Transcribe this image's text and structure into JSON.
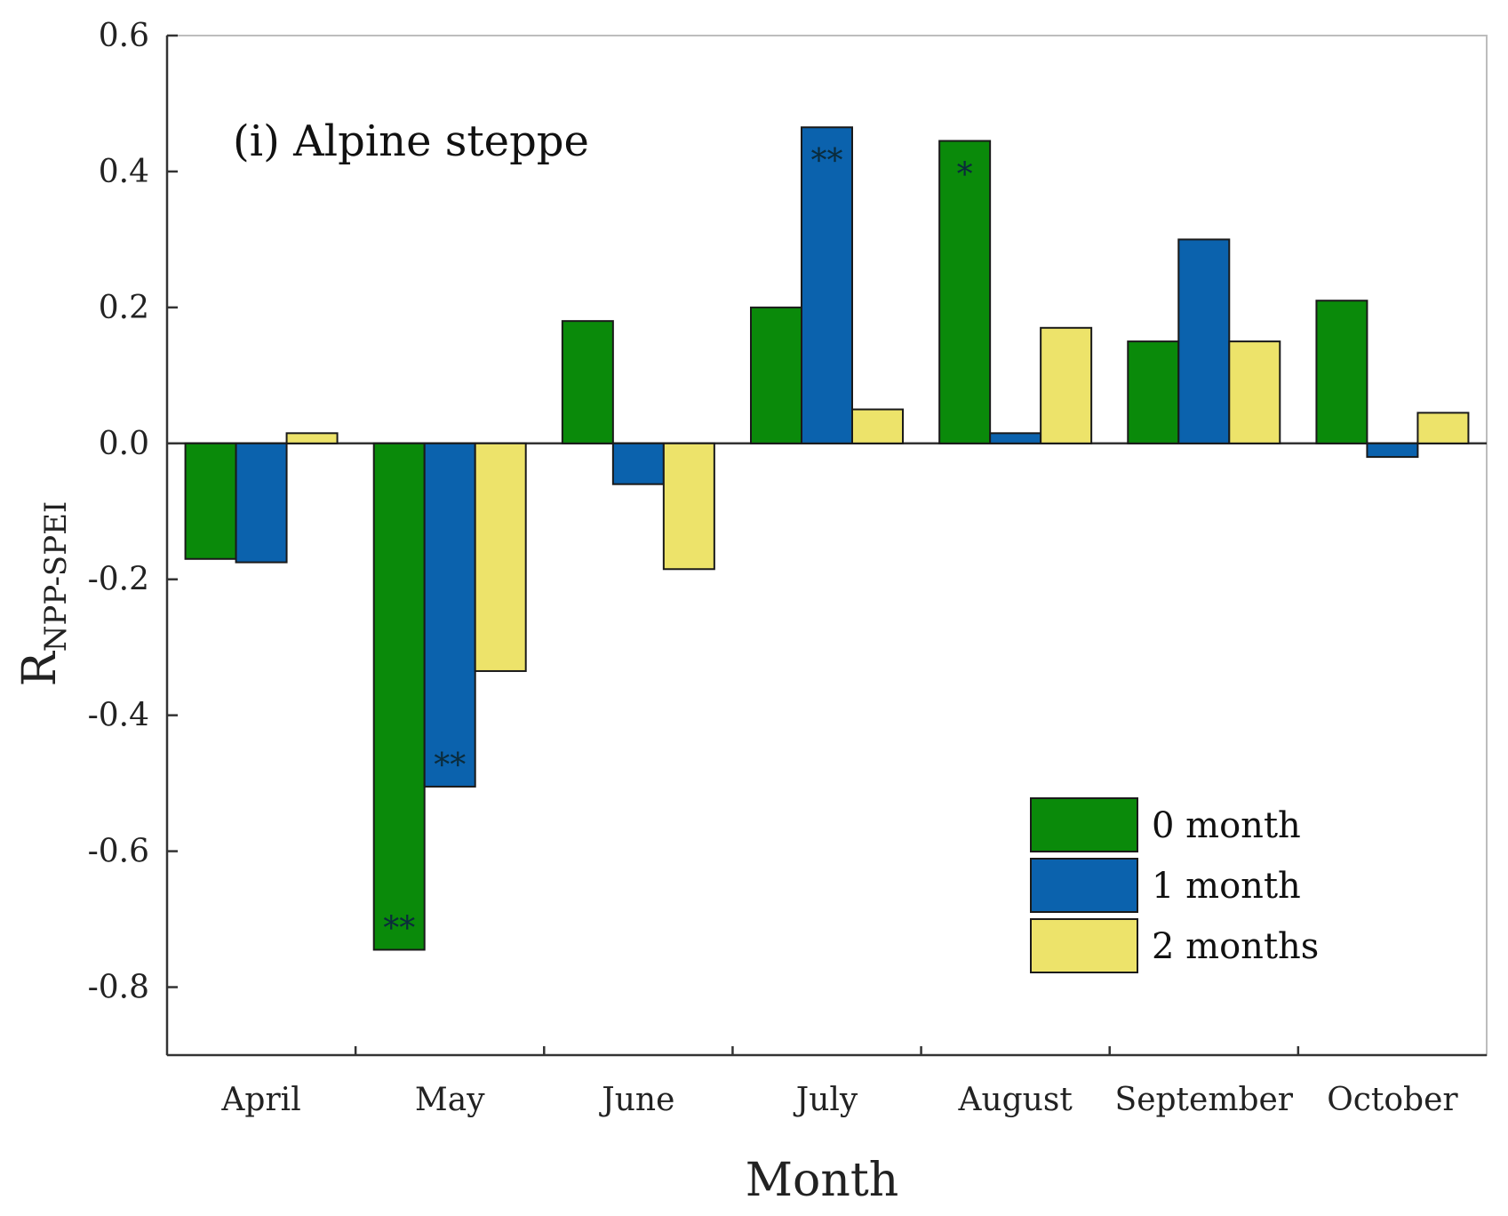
{
  "chart_data": {
    "type": "bar",
    "title": "(i) Alpine steppe",
    "xlabel": "Month",
    "ylabel_main": "R",
    "ylabel_sub": "NPP-SPEI",
    "ylim": [
      -0.9,
      0.6
    ],
    "yticks": [
      0.6,
      0.4,
      0.2,
      0.0,
      -0.2,
      -0.4,
      -0.6,
      -0.8
    ],
    "ytick_labels": [
      "0.6",
      "0.4",
      "0.2",
      "0.0",
      "-0.2",
      "-0.4",
      "-0.6",
      "-0.8"
    ],
    "categories": [
      "April",
      "May",
      "June",
      "July",
      "August",
      "September",
      "October"
    ],
    "series": [
      {
        "name": "0 month",
        "color": "#0a8a0a",
        "values": [
          -0.17,
          -0.745,
          0.18,
          0.2,
          0.445,
          0.15,
          0.21
        ]
      },
      {
        "name": "1 month",
        "color": "#0b62ad",
        "values": [
          -0.175,
          -0.505,
          -0.06,
          0.465,
          0.015,
          0.3,
          -0.02
        ]
      },
      {
        "name": "2 months",
        "color": "#ede36a",
        "values": [
          0.015,
          -0.335,
          -0.185,
          0.05,
          0.17,
          0.15,
          0.045
        ]
      }
    ],
    "annotations": [
      {
        "category": "May",
        "series": "0 month",
        "text": "**"
      },
      {
        "category": "May",
        "series": "1 month",
        "text": "**"
      },
      {
        "category": "July",
        "series": "1 month",
        "text": "**"
      },
      {
        "category": "August",
        "series": "0 month",
        "text": "*"
      }
    ],
    "legend": {
      "position": "lower-right",
      "entries": [
        "0 month",
        "1 month",
        "2 months"
      ]
    }
  }
}
